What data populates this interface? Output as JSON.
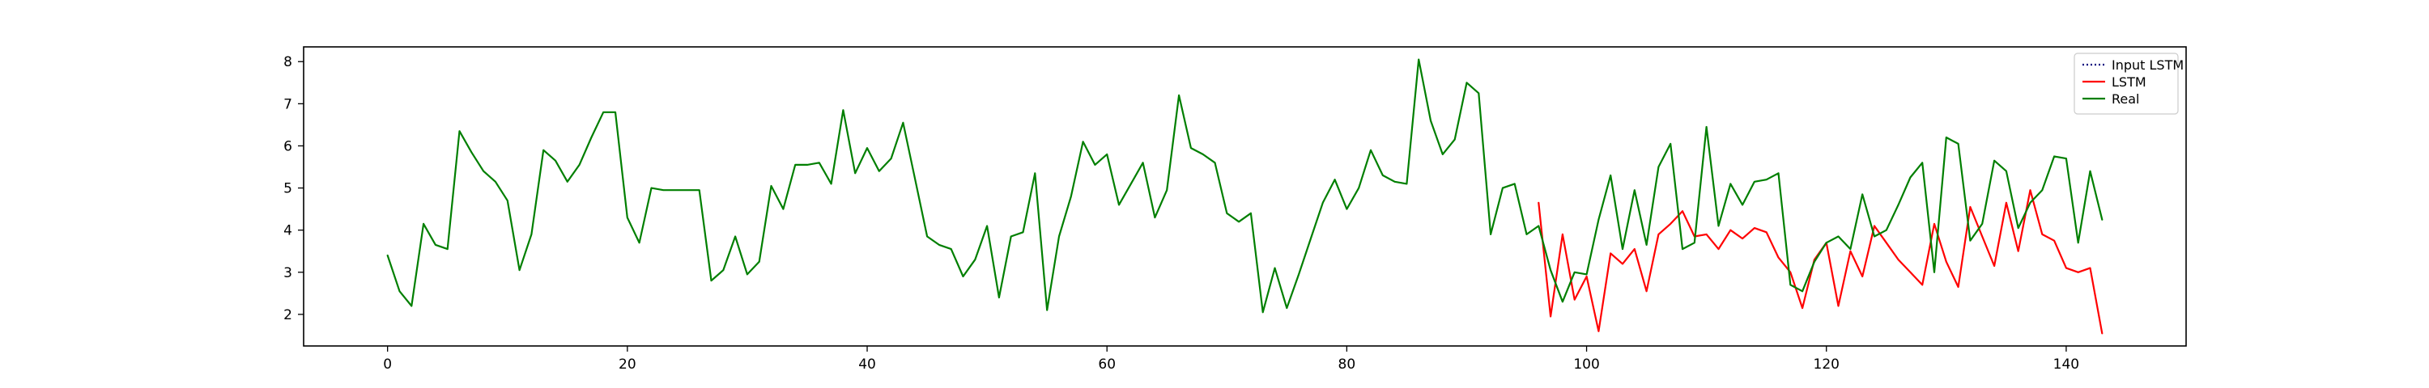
{
  "chart_data": {
    "type": "line",
    "title": "",
    "xlabel": "",
    "ylabel": "",
    "xlim": [
      -7,
      150
    ],
    "ylim": [
      1.25,
      8.35
    ],
    "x_ticks": [
      0,
      20,
      40,
      60,
      80,
      100,
      120,
      140
    ],
    "y_ticks": [
      2,
      3,
      4,
      5,
      6,
      7,
      8
    ],
    "grid": false,
    "legend_position": "top-right",
    "legend": [
      "Input LSTM",
      "LSTM",
      "Real"
    ],
    "series": [
      {
        "name": "Input LSTM",
        "color": "#00007f",
        "style": "dotted",
        "x": [],
        "y": []
      },
      {
        "name": "LSTM",
        "color": "#ff0000",
        "style": "solid",
        "x_start": 96,
        "y": [
          4.65,
          1.95,
          3.9,
          2.35,
          2.9,
          1.6,
          3.45,
          3.2,
          3.55,
          2.55,
          3.9,
          4.15,
          4.45,
          3.85,
          3.9,
          3.55,
          4.0,
          3.8,
          4.05,
          3.95,
          3.35,
          3.0,
          2.15,
          3.3,
          3.7,
          2.2,
          3.5,
          2.9,
          4.1,
          3.7,
          3.3,
          3.0,
          2.7,
          4.15,
          3.25,
          2.65,
          4.55,
          3.85,
          3.15,
          4.65,
          3.5,
          4.95,
          3.9,
          3.75,
          3.1,
          3.0,
          3.1,
          1.55
        ]
      },
      {
        "name": "Real",
        "color": "#007f00",
        "style": "solid",
        "x_start": 0,
        "y": [
          3.4,
          2.55,
          2.2,
          4.15,
          3.65,
          3.55,
          6.35,
          5.85,
          5.4,
          5.15,
          4.7,
          3.05,
          3.9,
          5.9,
          5.65,
          5.15,
          5.55,
          6.2,
          6.8,
          6.8,
          4.3,
          3.7,
          5.0,
          4.95,
          4.95,
          4.95,
          4.95,
          2.8,
          3.05,
          3.85,
          2.95,
          3.25,
          5.05,
          4.5,
          5.55,
          5.55,
          5.6,
          5.1,
          6.85,
          5.35,
          5.95,
          5.4,
          5.7,
          6.55,
          5.2,
          3.85,
          3.65,
          3.55,
          2.9,
          3.3,
          4.1,
          2.4,
          3.85,
          3.95,
          5.35,
          2.1,
          3.85,
          4.8,
          6.1,
          5.55,
          5.8,
          4.6,
          5.1,
          5.6,
          4.3,
          4.95,
          7.2,
          5.95,
          5.8,
          5.6,
          4.4,
          4.2,
          4.4,
          2.05,
          3.1,
          2.15,
          2.95,
          3.8,
          4.65,
          5.2,
          4.5,
          5.0,
          5.9,
          5.3,
          5.15,
          5.1,
          8.05,
          6.6,
          5.8,
          6.15,
          7.5,
          7.25,
          3.9,
          5.0,
          5.1,
          3.9,
          4.1,
          3.05,
          2.3,
          3.0,
          2.95,
          4.25,
          5.3,
          3.55,
          4.95,
          3.65,
          5.5,
          6.05,
          3.55,
          3.7,
          6.45,
          4.1,
          5.1,
          4.6,
          5.15,
          5.2,
          5.35,
          2.7,
          2.55,
          3.25,
          3.7,
          3.85,
          3.55,
          4.85,
          3.85,
          4.0,
          4.6,
          5.25,
          5.6,
          3.0,
          6.2,
          6.05,
          3.75,
          4.15,
          5.65,
          5.4,
          4.05,
          4.65,
          4.95,
          5.75,
          5.7,
          3.7,
          5.4,
          4.25
        ]
      }
    ]
  }
}
